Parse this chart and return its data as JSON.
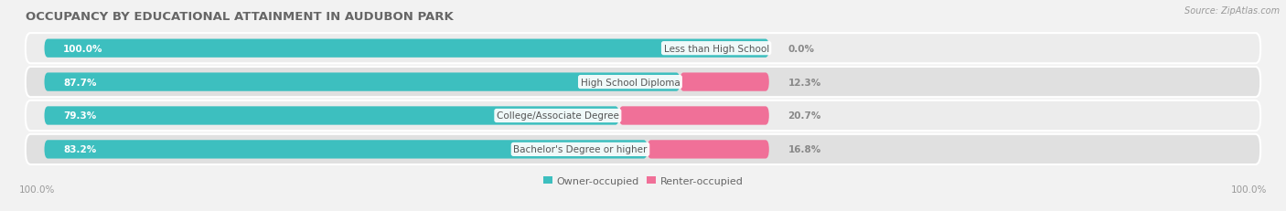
{
  "title": "OCCUPANCY BY EDUCATIONAL ATTAINMENT IN AUDUBON PARK",
  "source": "Source: ZipAtlas.com",
  "categories": [
    "Less than High School",
    "High School Diploma",
    "College/Associate Degree",
    "Bachelor's Degree or higher"
  ],
  "owner_pct": [
    100.0,
    87.7,
    79.3,
    83.2
  ],
  "renter_pct": [
    0.0,
    12.3,
    20.7,
    16.8
  ],
  "owner_color": "#3dbfbf",
  "renter_color": "#f07098",
  "row_bg_color_odd": "#ececec",
  "row_bg_color_even": "#e0e0e0",
  "title_color": "#666666",
  "source_color": "#999999",
  "label_white": "#ffffff",
  "label_dark": "#888888",
  "cat_label_color": "#555555",
  "title_fontsize": 9.5,
  "source_fontsize": 7,
  "bar_label_fontsize": 7.5,
  "cat_label_fontsize": 7.5,
  "legend_fontsize": 8,
  "axis_label_fontsize": 7.5,
  "left_axis_label": "100.0%",
  "right_axis_label": "100.0%"
}
